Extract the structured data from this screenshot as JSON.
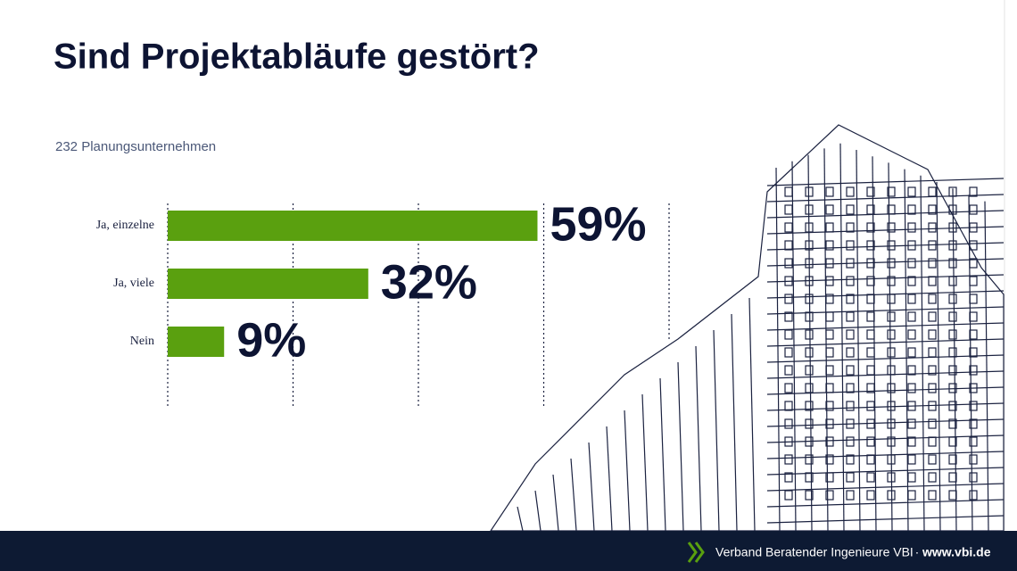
{
  "chart_data": {
    "type": "hbar",
    "title": "Sind Projektabläufe gestört?",
    "subtitle": "232 Planungsunternehmen",
    "categories": [
      "Ja, einzelne",
      "Ja, viele",
      "Nein"
    ],
    "values": [
      59,
      32,
      9
    ],
    "value_labels": [
      "59%",
      "32%",
      "9%"
    ],
    "color": "#5aa00f",
    "xlim": [
      0,
      80
    ],
    "xticks": [
      0,
      20,
      40,
      60,
      80
    ],
    "grid": true
  },
  "footer": {
    "organization": "Verband Beratender Ingenieure VBI",
    "separator": "·",
    "website": "www.vbi.de"
  }
}
